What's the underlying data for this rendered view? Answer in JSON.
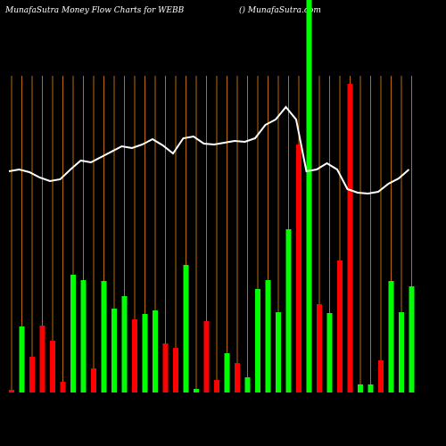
{
  "chart_data": {
    "type": "bar",
    "title": "MunafaSutra  Money Flow  Charts for WEBB",
    "subtitle": "() MunafaSutra.com",
    "ylim": [
      0,
      440
    ],
    "background": "#000000",
    "guide_color": "#b86a0c",
    "series": [
      {
        "kind": "bar",
        "values": [
          3,
          74,
          40,
          75,
          58,
          12,
          132,
          126,
          27,
          125,
          94,
          108,
          82,
          88,
          92,
          55,
          50,
          143,
          4,
          80,
          14,
          44,
          33,
          17,
          116,
          126,
          90,
          183,
          278,
          440,
          99,
          89,
          148,
          346,
          9,
          9,
          36,
          125,
          90,
          119
        ],
        "colors": [
          "#ff0000",
          "#00ff00",
          "#ff0000",
          "#ff0000",
          "#ff0000",
          "#ff0000",
          "#00ff00",
          "#00ff00",
          "#ff0000",
          "#00ff00",
          "#00ff00",
          "#00ff00",
          "#ff0000",
          "#00ff00",
          "#00ff00",
          "#ff0000",
          "#ff0000",
          "#00ff00",
          "#00ff00",
          "#ff0000",
          "#ff0000",
          "#00ff00",
          "#ff0000",
          "#00ff00",
          "#00ff00",
          "#00ff00",
          "#00ff00",
          "#00ff00",
          "#ff0000",
          "#00ff00",
          "#ff0000",
          "#00ff00",
          "#ff0000",
          "#ff0000",
          "#00ff00",
          "#00ff00",
          "#ff0000",
          "#00ff00",
          "#00ff00",
          "#00ff00"
        ]
      },
      {
        "kind": "line",
        "color": "#ffffff",
        "values": [
          248,
          250,
          247,
          241,
          237,
          239,
          250,
          260,
          258,
          264,
          270,
          276,
          274,
          278,
          284,
          277,
          268,
          285,
          287,
          279,
          278,
          280,
          282,
          281,
          285,
          300,
          306,
          320,
          306,
          248,
          250,
          257,
          250,
          228,
          224,
          223,
          225,
          234,
          240,
          250
        ]
      }
    ]
  }
}
